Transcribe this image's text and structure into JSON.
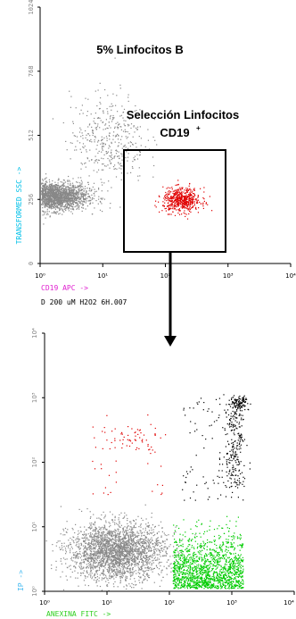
{
  "figure": {
    "annotation_percent": "5% Linfocitos B",
    "gate_title_line1": "Selección Linfocitos",
    "gate_title_line2": "CD19",
    "gate_title_sup": "+",
    "sample_id": "D 200 uM H2O2 6H.007"
  },
  "colors": {
    "axis_label_top_y": "#00c0e8",
    "axis_label_top_x": "#e020d0",
    "axis_label_bottom": "#40b8f0",
    "axis_label_bottom_x": "#30d020",
    "tick_label": "#7f7f7f",
    "grey_dots": "#888888",
    "red_dots": "#e00000",
    "green_dots": "#00cc00",
    "black_dots": "#000000"
  },
  "chart_data": [
    {
      "type": "scatter",
      "title": "",
      "xlabel": "CD19 APC ->",
      "ylabel": "TRANSFORMED SSC ->",
      "xscale": "log",
      "xlim": [
        1,
        10000
      ],
      "ylim": [
        0,
        1024
      ],
      "x_ticks": [
        "10⁰",
        "10¹",
        "10²",
        "10³",
        "10⁴"
      ],
      "y_ticks": [
        "0",
        "256",
        "512",
        "768",
        "1024"
      ],
      "gate": {
        "shape": "rectangle",
        "x_range": [
          30,
          1000
        ],
        "y_range": [
          55,
          475
        ],
        "label": "Selección Linfocitos CD19⁺"
      },
      "series": [
        {
          "name": "",
          "color": "grey",
          "clusters": [
            {
              "x_center": 1.6,
              "y_center": 270,
              "x_spread_decades": 0.55,
              "y_spread": 55,
              "n": 2200
            },
            {
              "x_center": 12,
              "y_center": 500,
              "x_spread_decades": 0.6,
              "y_spread": 180,
              "n": 420
            }
          ]
        },
        {
          "name": "",
          "color": "red",
          "clusters": [
            {
              "x_center": 180,
              "y_center": 255,
              "x_spread_decades": 0.3,
              "y_spread": 48,
              "n": 560
            }
          ]
        }
      ]
    },
    {
      "type": "scatter",
      "title": "",
      "xlabel": "ANEXINA FITC ->",
      "ylabel": "IP ->",
      "xscale": "log",
      "yscale": "log",
      "xlim": [
        1,
        10000
      ],
      "ylim": [
        1,
        10000
      ],
      "x_ticks": [
        "10⁰",
        "10¹",
        "10²",
        "10³",
        "10⁴"
      ],
      "y_ticks": [
        "10⁰",
        "10¹",
        "10²",
        "10³",
        "10⁴"
      ],
      "series": [
        {
          "name": "",
          "color": "grey",
          "region": "Anexina- / IP-",
          "x_range": [
            1,
            100
          ],
          "y_range": [
            1,
            20
          ],
          "n": 2600
        },
        {
          "name": "",
          "color": "green",
          "region": "Anexina+ / IP-",
          "x_range": [
            100,
            1500
          ],
          "y_range": [
            1,
            20
          ],
          "n": 1500
        },
        {
          "name": "",
          "color": "red",
          "region": "Anexina- / IP+",
          "x_range": [
            3,
            100
          ],
          "y_range": [
            30,
            400
          ],
          "n": 90
        },
        {
          "name": "",
          "color": "black",
          "region": "Anexina+ / IP+",
          "x_range": [
            200,
            3000
          ],
          "y_range": [
            30,
            1100
          ],
          "n": 420
        }
      ]
    }
  ]
}
